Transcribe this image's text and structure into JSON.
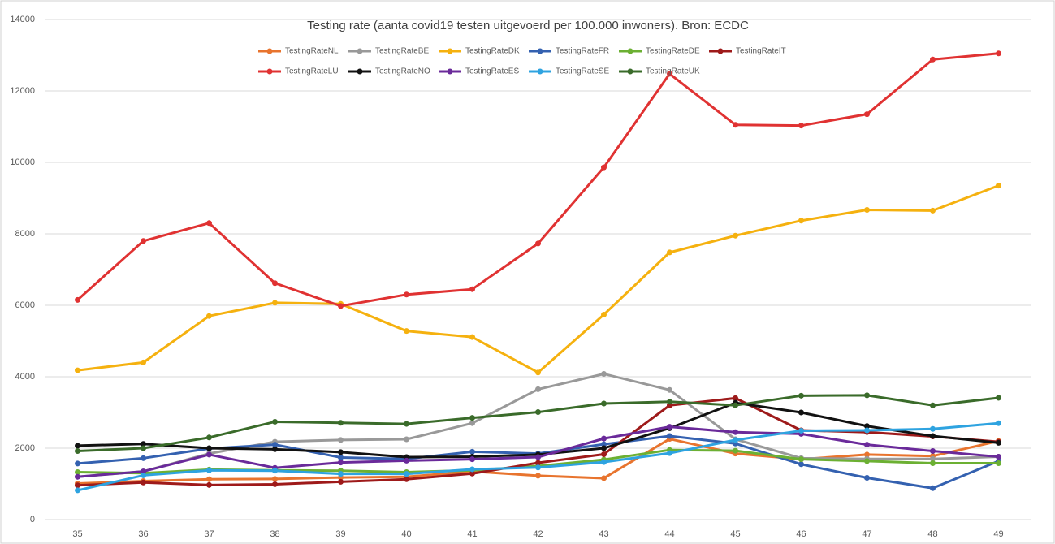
{
  "chart_data": {
    "type": "line",
    "title": "Testing rate (aanta covid19 testen uitgevoerd per 100.000 inwoners). Bron: ECDC",
    "categories": [
      "35",
      "36",
      "37",
      "38",
      "39",
      "40",
      "41",
      "42",
      "43",
      "44",
      "45",
      "46",
      "47",
      "48",
      "49"
    ],
    "ylim": [
      0,
      14000
    ],
    "yticks": [
      0,
      2000,
      4000,
      6000,
      8000,
      10000,
      12000,
      14000
    ],
    "grid": true,
    "legend": "top",
    "series": [
      {
        "name": "TestingRateNL",
        "color": "#e8742e",
        "values": [
          1010,
          1080,
          1130,
          1140,
          1180,
          1200,
          1350,
          1230,
          1160,
          2260,
          1850,
          1690,
          1820,
          1780,
          2200
        ]
      },
      {
        "name": "TestingRateBE",
        "color": "#999999",
        "values": [
          1200,
          1350,
          1850,
          2180,
          2230,
          2250,
          2700,
          3650,
          4080,
          3630,
          2250,
          1720,
          1700,
          1700,
          1760
        ]
      },
      {
        "name": "TestingRateDK",
        "color": "#f5b10f",
        "values": [
          4180,
          4400,
          5700,
          6070,
          6040,
          5280,
          5110,
          4120,
          5740,
          7480,
          7950,
          8370,
          8670,
          8650,
          9350
        ]
      },
      {
        "name": "TestingRateFR",
        "color": "#3461b0",
        "values": [
          1570,
          1720,
          1990,
          2100,
          1740,
          1700,
          1900,
          1850,
          2110,
          2340,
          2130,
          1550,
          1170,
          880,
          1640
        ]
      },
      {
        "name": "TestingRateDE",
        "color": "#6cb033",
        "values": [
          1330,
          1300,
          1400,
          1380,
          1370,
          1330,
          1380,
          1500,
          1680,
          1950,
          1930,
          1690,
          1640,
          1580,
          1580
        ]
      },
      {
        "name": "TestingRateIT",
        "color": "#9e1a1a",
        "values": [
          960,
          1040,
          970,
          990,
          1060,
          1130,
          1290,
          1590,
          1830,
          3200,
          3400,
          2500,
          2450,
          2330,
          2180
        ]
      },
      {
        "name": "TestingRateLU",
        "color": "#e03232",
        "values": [
          6150,
          7800,
          8300,
          6620,
          5980,
          6300,
          6450,
          7730,
          9860,
          12480,
          11050,
          11030,
          11350,
          12880,
          13050
        ]
      },
      {
        "name": "TestingRateNO",
        "color": "#111111",
        "values": [
          2070,
          2120,
          2000,
          1970,
          1890,
          1750,
          1760,
          1820,
          2000,
          2560,
          3270,
          3000,
          2620,
          2340,
          2150
        ]
      },
      {
        "name": "TestingRateES",
        "color": "#6a2a9a",
        "values": [
          1200,
          1350,
          1820,
          1450,
          1600,
          1650,
          1690,
          1750,
          2270,
          2600,
          2450,
          2400,
          2100,
          1920,
          1760
        ]
      },
      {
        "name": "TestingRateSE",
        "color": "#2ea3e0",
        "values": [
          820,
          1240,
          1380,
          1370,
          1280,
          1280,
          1410,
          1460,
          1610,
          1860,
          2230,
          2490,
          2500,
          2540,
          2700
        ]
      },
      {
        "name": "TestingRateUK",
        "color": "#3a6b2a",
        "values": [
          1920,
          2000,
          2300,
          2740,
          2710,
          2680,
          2850,
          3010,
          3250,
          3300,
          3200,
          3470,
          3480,
          3200,
          3410
        ]
      }
    ]
  }
}
